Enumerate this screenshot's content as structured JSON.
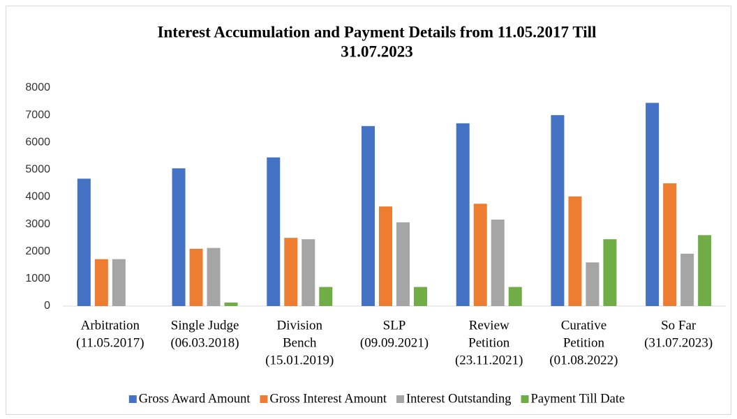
{
  "chart_data": {
    "type": "bar",
    "title": [
      "Interest Accumulation and Payment Details from 11.05.2017 Till",
      "31.07.2023"
    ],
    "categories": [
      [
        "Arbitration",
        "(11.05.2017)"
      ],
      [
        "Single Judge",
        "(06.03.2018)"
      ],
      [
        "Division",
        "Bench",
        "(15.01.2019)"
      ],
      [
        "SLP",
        "(09.09.2021)"
      ],
      [
        "Review",
        "Petition",
        "(23.11.2021)"
      ],
      [
        "Curative",
        "Petition",
        "(01.08.2022)"
      ],
      [
        "So Far",
        "(31.07.2023)"
      ]
    ],
    "series": [
      {
        "name": "Gross Award Amount",
        "color": "#4472c4",
        "values": [
          4670,
          5050,
          5450,
          6600,
          6700,
          7000,
          7450
        ]
      },
      {
        "name": "Gross Interest Amount",
        "color": "#ed7d31",
        "values": [
          1720,
          2100,
          2500,
          3650,
          3750,
          4020,
          4500
        ]
      },
      {
        "name": "Interest Outstanding",
        "color": "#a5a5a5",
        "values": [
          1720,
          2130,
          2450,
          3070,
          3170,
          1600,
          1920
        ]
      },
      {
        "name": "Payment Till Date",
        "color": "#70ad47",
        "values": [
          0,
          130,
          700,
          700,
          700,
          2450,
          2600
        ]
      }
    ],
    "ylim": [
      0,
      8000
    ],
    "yticks": [
      0,
      1000,
      2000,
      3000,
      4000,
      5000,
      6000,
      7000,
      8000
    ],
    "grid": false,
    "legend": "bottom"
  }
}
